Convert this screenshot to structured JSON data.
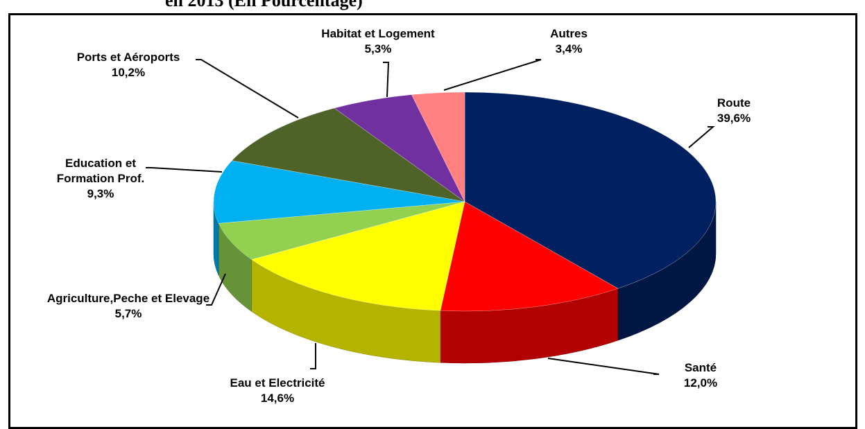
{
  "chart_data": {
    "type": "pie",
    "title": "en 2013 (En Pourcentage)",
    "categories": [
      "Route",
      "Santé",
      "Eau et Electricité",
      "Agriculture,Peche et Elevage",
      "Education et Formation Prof.",
      "Ports et Aéroports",
      "Habitat et Logement",
      "Autres"
    ],
    "values": [
      39.6,
      12.0,
      14.6,
      5.7,
      9.3,
      10.2,
      5.3,
      3.4
    ],
    "value_labels": [
      "39,6%",
      "12,0%",
      "14,6%",
      "5,7%",
      "9,3%",
      "10,2%",
      "5,3%",
      "3,4%"
    ],
    "colors": [
      "#002060",
      "#ff0000",
      "#ffff00",
      "#92d050",
      "#00b0f0",
      "#4f6228",
      "#7030a0",
      "#ff8080"
    ]
  }
}
